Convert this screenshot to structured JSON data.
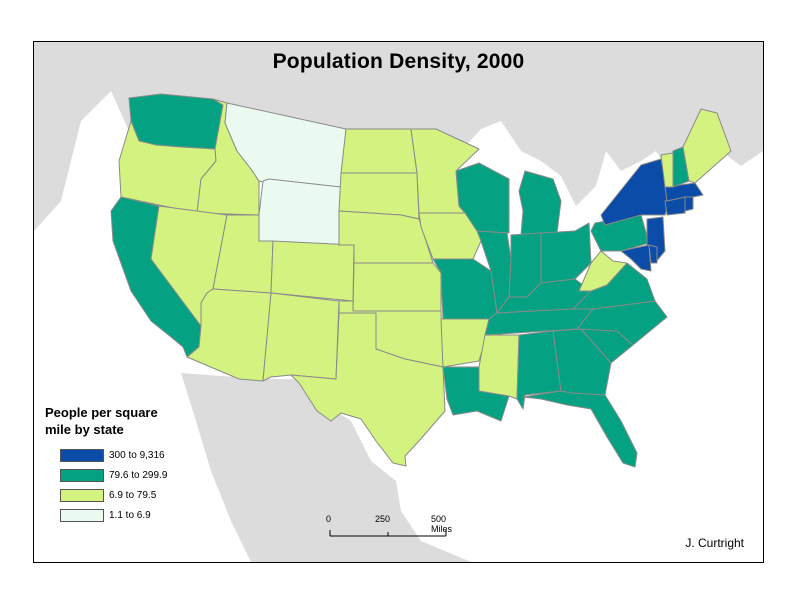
{
  "map": {
    "title": "Population Density, 2000",
    "legend_title_line1": "People per square",
    "legend_title_line2": "mile by state",
    "legend": [
      {
        "label": "300 to 9,316",
        "color": "#0a4ca8"
      },
      {
        "label": "79.6 to 299.9",
        "color": "#04a282"
      },
      {
        "label": "6.9 to 79.5",
        "color": "#d4f27f"
      },
      {
        "label": "1.1 to 6.9",
        "color": "#eafaf0"
      }
    ],
    "scale_bar": {
      "labels": [
        "0",
        "250",
        "500 Miles"
      ]
    },
    "credit": "J. Curtright",
    "colors": {
      "land_outside": "#dcdcdc",
      "water": "#ffffff",
      "border": "#8a8a8a"
    },
    "states": [
      {
        "name": "WA",
        "class": "79.6 to 299.9"
      },
      {
        "name": "OR",
        "class": "6.9 to 79.5"
      },
      {
        "name": "CA",
        "class": "79.6 to 299.9"
      },
      {
        "name": "ID",
        "class": "6.9 to 79.5"
      },
      {
        "name": "NV",
        "class": "6.9 to 79.5"
      },
      {
        "name": "MT",
        "class": "1.1 to 6.9"
      },
      {
        "name": "WY",
        "class": "1.1 to 6.9"
      },
      {
        "name": "UT",
        "class": "6.9 to 79.5"
      },
      {
        "name": "AZ",
        "class": "6.9 to 79.5"
      },
      {
        "name": "CO",
        "class": "6.9 to 79.5"
      },
      {
        "name": "NM",
        "class": "6.9 to 79.5"
      },
      {
        "name": "ND",
        "class": "6.9 to 79.5"
      },
      {
        "name": "SD",
        "class": "6.9 to 79.5"
      },
      {
        "name": "NE",
        "class": "6.9 to 79.5"
      },
      {
        "name": "KS",
        "class": "6.9 to 79.5"
      },
      {
        "name": "OK",
        "class": "6.9 to 79.5"
      },
      {
        "name": "TX",
        "class": "6.9 to 79.5"
      },
      {
        "name": "MN",
        "class": "6.9 to 79.5"
      },
      {
        "name": "IA",
        "class": "6.9 to 79.5"
      },
      {
        "name": "MO",
        "class": "79.6 to 299.9"
      },
      {
        "name": "AR",
        "class": "6.9 to 79.5"
      },
      {
        "name": "LA",
        "class": "79.6 to 299.9"
      },
      {
        "name": "WI",
        "class": "79.6 to 299.9"
      },
      {
        "name": "IL",
        "class": "79.6 to 299.9"
      },
      {
        "name": "MI",
        "class": "79.6 to 299.9"
      },
      {
        "name": "IN",
        "class": "79.6 to 299.9"
      },
      {
        "name": "OH",
        "class": "79.6 to 299.9"
      },
      {
        "name": "KY",
        "class": "79.6 to 299.9"
      },
      {
        "name": "TN",
        "class": "79.6 to 299.9"
      },
      {
        "name": "MS",
        "class": "6.9 to 79.5"
      },
      {
        "name": "AL",
        "class": "79.6 to 299.9"
      },
      {
        "name": "GA",
        "class": "79.6 to 299.9"
      },
      {
        "name": "FL",
        "class": "79.6 to 299.9"
      },
      {
        "name": "SC",
        "class": "79.6 to 299.9"
      },
      {
        "name": "NC",
        "class": "79.6 to 299.9"
      },
      {
        "name": "VA",
        "class": "79.6 to 299.9"
      },
      {
        "name": "WV",
        "class": "6.9 to 79.5"
      },
      {
        "name": "PA",
        "class": "79.6 to 299.9"
      },
      {
        "name": "NY",
        "class": "300 to 9,316"
      },
      {
        "name": "NJ",
        "class": "300 to 9,316"
      },
      {
        "name": "MD",
        "class": "300 to 9,316"
      },
      {
        "name": "DE",
        "class": "300 to 9,316"
      },
      {
        "name": "CT",
        "class": "300 to 9,316"
      },
      {
        "name": "RI",
        "class": "300 to 9,316"
      },
      {
        "name": "MA",
        "class": "300 to 9,316"
      },
      {
        "name": "VT",
        "class": "6.9 to 79.5"
      },
      {
        "name": "NH",
        "class": "79.6 to 299.9"
      },
      {
        "name": "ME",
        "class": "6.9 to 79.5"
      }
    ]
  }
}
